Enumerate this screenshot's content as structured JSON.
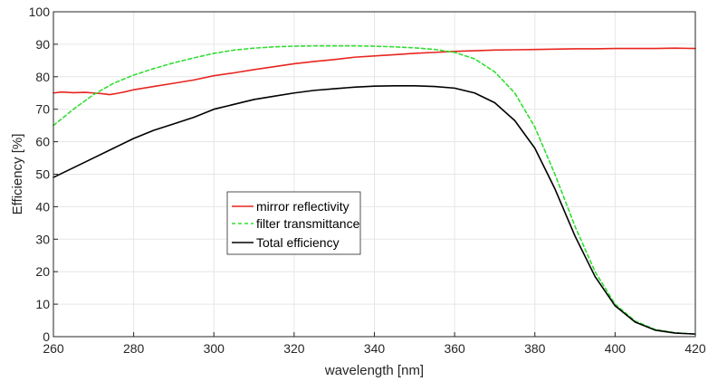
{
  "chart_data": {
    "type": "line",
    "title": "",
    "xlabel": "wavelength [nm]",
    "ylabel": "Efficiency [%]",
    "xlim": [
      260,
      420
    ],
    "ylim": [
      0,
      100
    ],
    "xticks": [
      260,
      280,
      300,
      320,
      340,
      360,
      380,
      400,
      420
    ],
    "yticks": [
      0,
      10,
      20,
      30,
      40,
      50,
      60,
      70,
      80,
      90,
      100
    ],
    "grid": true,
    "legend_position": "center-left",
    "series": [
      {
        "name": "mirror reflectivity",
        "color": "#e8251f",
        "style": "solid",
        "x": [
          260,
          262,
          265,
          268,
          270,
          272,
          274,
          276,
          278,
          280,
          285,
          290,
          295,
          300,
          305,
          310,
          315,
          320,
          325,
          330,
          335,
          340,
          345,
          350,
          355,
          360,
          365,
          370,
          375,
          380,
          385,
          390,
          395,
          400,
          405,
          410,
          415,
          420
        ],
        "y": [
          75.0,
          75.3,
          75.1,
          75.2,
          75.0,
          74.8,
          74.5,
          74.9,
          75.4,
          76.0,
          77.0,
          78.0,
          79.0,
          80.3,
          81.2,
          82.2,
          83.1,
          84.0,
          84.7,
          85.3,
          86.0,
          86.4,
          86.8,
          87.2,
          87.5,
          87.8,
          88.0,
          88.2,
          88.3,
          88.4,
          88.5,
          88.6,
          88.6,
          88.7,
          88.7,
          88.7,
          88.8,
          88.7
        ]
      },
      {
        "name": "filter transmittance",
        "color": "#33dd33",
        "style": "dashed",
        "x": [
          260,
          265,
          270,
          275,
          280,
          285,
          290,
          295,
          300,
          305,
          310,
          315,
          320,
          325,
          330,
          335,
          340,
          345,
          350,
          355,
          360,
          365,
          370,
          375,
          380,
          385,
          390,
          395,
          400,
          405,
          410,
          415,
          420
        ],
        "y": [
          65.0,
          70.0,
          74.5,
          78.0,
          80.5,
          82.5,
          84.3,
          85.8,
          87.2,
          88.2,
          88.8,
          89.2,
          89.4,
          89.5,
          89.5,
          89.5,
          89.4,
          89.2,
          88.9,
          88.4,
          87.5,
          85.5,
          81.5,
          75.0,
          64.5,
          50.0,
          34.0,
          20.0,
          10.0,
          4.8,
          2.2,
          1.2,
          0.8
        ]
      },
      {
        "name": "Total efficiency",
        "color": "#000000",
        "style": "solid",
        "x": [
          260,
          265,
          270,
          275,
          280,
          285,
          290,
          295,
          300,
          305,
          310,
          315,
          320,
          325,
          330,
          335,
          340,
          345,
          350,
          355,
          360,
          365,
          370,
          375,
          380,
          385,
          390,
          395,
          400,
          405,
          410,
          415,
          420
        ],
        "y": [
          49.0,
          52.0,
          55.0,
          58.0,
          61.0,
          63.5,
          65.5,
          67.5,
          70.0,
          71.5,
          73.0,
          74.0,
          75.0,
          75.8,
          76.3,
          76.8,
          77.1,
          77.2,
          77.2,
          77.0,
          76.5,
          75.0,
          72.0,
          66.5,
          58.0,
          45.5,
          31.0,
          18.5,
          9.5,
          4.5,
          2.0,
          1.1,
          0.8
        ]
      }
    ]
  }
}
